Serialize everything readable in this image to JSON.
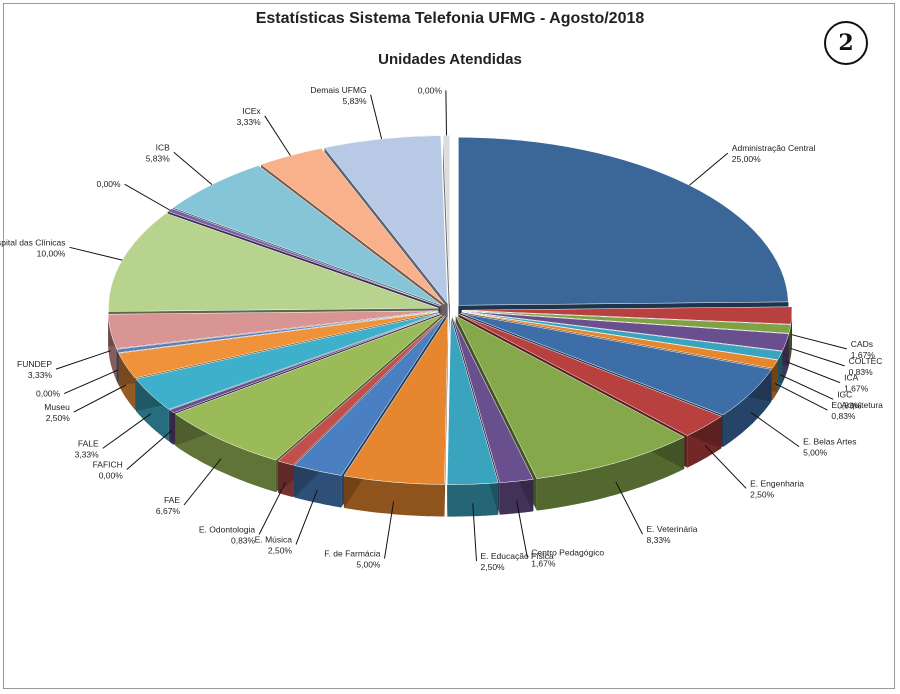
{
  "chart_data": {
    "type": "pie",
    "title": "Estatísticas Sistema Telefonia UFMG - Agosto/2018",
    "subtitle": "Unidades Atendidas",
    "badge": "2",
    "slices": [
      {
        "name": "Administração Central",
        "value": 25.0,
        "label": "25,00%",
        "color": "#3b6798"
      },
      {
        "name": "CADs",
        "value": 1.67,
        "label": "1,67%",
        "color": "#b8403e"
      },
      {
        "name": "COLTEC",
        "value": 0.83,
        "label": "0,83%",
        "color": "#7fa344"
      },
      {
        "name": "ICA",
        "value": 1.67,
        "label": "1,67%",
        "color": "#6a4f8f"
      },
      {
        "name": "IGC",
        "value": 0.83,
        "label": "0,83%",
        "color": "#3aa4be"
      },
      {
        "name": "E. Arquitetura",
        "value": 0.83,
        "label": "0,83%",
        "color": "#e6862e"
      },
      {
        "name": "E. Belas Artes",
        "value": 5.0,
        "label": "5,00%",
        "color": "#3d6ea8"
      },
      {
        "name": "E. Engenharia",
        "value": 2.5,
        "label": "2,50%",
        "color": "#b8403e"
      },
      {
        "name": "E. Veterinária",
        "value": 8.33,
        "label": "8,33%",
        "color": "#84a84a"
      },
      {
        "name": "Centro Pedagógico",
        "value": 1.67,
        "label": "1,67%",
        "color": "#6a4f8f"
      },
      {
        "name": "E. Educação  Física",
        "value": 2.5,
        "label": "2,50%",
        "color": "#3aa4be"
      },
      {
        "name": "F. de Farmácia",
        "value": 5.0,
        "label": "5,00%",
        "color": "#e6862e"
      },
      {
        "name": "E. Música",
        "value": 2.5,
        "label": "2,50%",
        "color": "#4a7fc1"
      },
      {
        "name": "E. Odontologia",
        "value": 0.83,
        "label": "0,83%",
        "color": "#c0504d"
      },
      {
        "name": "FAE",
        "value": 6.67,
        "label": "6,67%",
        "color": "#9bbb59"
      },
      {
        "name": "FAFICH",
        "value": 0.0,
        "label": "0,00%",
        "color": "#6a4f8f"
      },
      {
        "name": "FALE",
        "value": 3.33,
        "label": "3,33%",
        "color": "#3fb0cc"
      },
      {
        "name": "Museu",
        "value": 2.5,
        "label": "2,50%",
        "color": "#f0923a"
      },
      {
        "name": "0,00%-slice",
        "value": 0.0,
        "label": "0,00%",
        "color": "#5a7eb8"
      },
      {
        "name": "FUNDEP",
        "value": 3.33,
        "label": "3,33%",
        "color": "#d99594"
      },
      {
        "name": "Hospital das Clínicas",
        "value": 10.0,
        "label": "10,00%",
        "color": "#b8d38e"
      },
      {
        "name": "0,00%-slice-2",
        "value": 0.0,
        "label": "0,00%",
        "color": "#7b5fa6"
      },
      {
        "name": "ICB",
        "value": 5.83,
        "label": "5,83%",
        "color": "#86c4d8"
      },
      {
        "name": "ICEx",
        "value": 3.33,
        "label": "3,33%",
        "color": "#f9b18b"
      },
      {
        "name": "Demais UFMG",
        "value": 5.83,
        "label": "5,83%",
        "color": "#b8c9e6"
      },
      {
        "name": "0,00%-slice-3",
        "value": 0.0,
        "label": "0,00%",
        "color": "#dddddd"
      }
    ],
    "labels": [
      {
        "text": "Administração Central",
        "value": "25,00%"
      },
      {
        "text": "CADs",
        "value": "1,67%"
      },
      {
        "text": "COLTEC",
        "value": "0,83%"
      },
      {
        "text": "ICA",
        "value": "1,67%"
      },
      {
        "text": "IGC",
        "value": "0,83%"
      },
      {
        "text": "E. Arquitetura",
        "value": "0,83%"
      },
      {
        "text": "E. Belas Artes",
        "value": "5,00%"
      },
      {
        "text": "E. Engenharia",
        "value": "2,50%"
      },
      {
        "text": "E. Veterinária",
        "value": "8,33%"
      },
      {
        "text": "Centro Pedagógico",
        "value": "1,67%"
      },
      {
        "text": "E. Educação  Física",
        "value": "2,50%"
      },
      {
        "text": "F. de Farmácia",
        "value": "5,00%"
      },
      {
        "text": "E. Música",
        "value": "2,50%"
      },
      {
        "text": "E. Odontologia",
        "value": "0,83%"
      },
      {
        "text": "FAE",
        "value": "6,67%"
      },
      {
        "text": "FAFICH",
        "value": "0,00%"
      },
      {
        "text": "FALE",
        "value": "3,33%"
      },
      {
        "text": "Museu",
        "value": "2,50%"
      },
      {
        "text": "",
        "value": "0,00%"
      },
      {
        "text": "FUNDEP",
        "value": "3,33%"
      },
      {
        "text": "Hospital das Clínicas",
        "value": "10,00%"
      },
      {
        "text": "",
        "value": "0,00%"
      },
      {
        "text": "ICB",
        "value": "5,83%"
      },
      {
        "text": "ICEx",
        "value": "3,33%"
      },
      {
        "text": "Demais UFMG",
        "value": "5,83%"
      },
      {
        "text": "",
        "value": "0,00%"
      }
    ]
  }
}
